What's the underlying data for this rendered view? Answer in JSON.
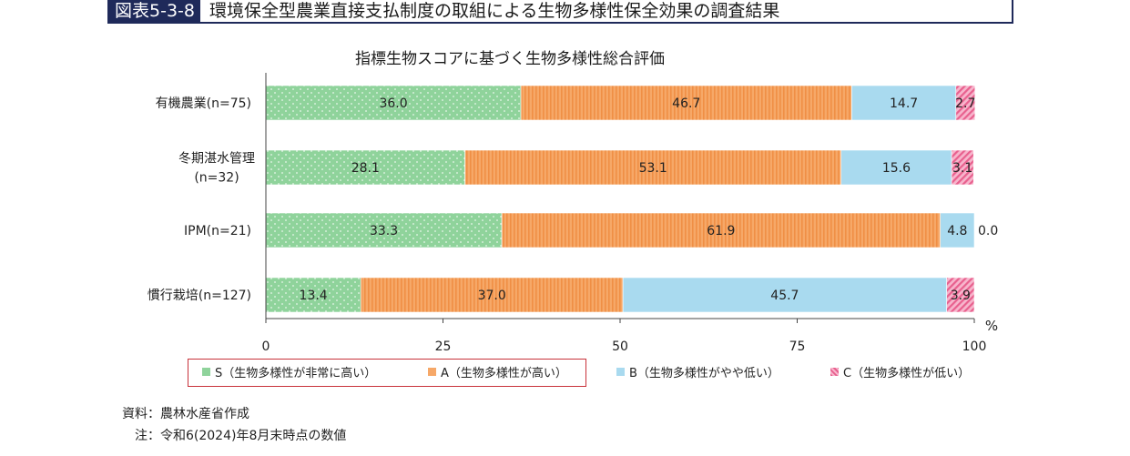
{
  "figure": {
    "number": "図表5-3-8",
    "title": "環境保全型農業直接支払制度の取組による生物多様性保全効果の調査結果"
  },
  "chart_data": {
    "type": "bar",
    "orientation": "horizontal",
    "stacked": true,
    "title": "指標生物スコアに基づく生物多様性総合評価",
    "unit": "%",
    "categories": [
      [
        "有機農業(n=75)"
      ],
      [
        "冬期湛水管理",
        "(n=32)"
      ],
      [
        "IPM(n=21)"
      ],
      [
        "慣行栽培(n=127)"
      ]
    ],
    "xlim": [
      0,
      100
    ],
    "xticks": [
      "0",
      "25",
      "50",
      "75",
      "100"
    ],
    "series": [
      {
        "name": "S（生物多様性が非常に高い）",
        "color": "#8fd39b",
        "values": [
          36.0,
          28.1,
          33.3,
          13.4
        ],
        "labels": [
          "36.0",
          "28.1",
          "33.3",
          "13.4"
        ]
      },
      {
        "name": "A（生物多様性が高い）",
        "color": "#f6a868",
        "values": [
          46.7,
          53.1,
          61.9,
          37.0
        ],
        "labels": [
          "46.7",
          "53.1",
          "61.9",
          "37.0"
        ]
      },
      {
        "name": "B（生物多様性がやや低い）",
        "color": "#a9daef",
        "values": [
          14.7,
          15.6,
          4.8,
          45.7
        ],
        "labels": [
          "14.7",
          "15.6",
          "4.8",
          "45.7"
        ]
      },
      {
        "name": "C（生物多様性が低い）",
        "color": "#f07fa6",
        "values": [
          2.7,
          3.1,
          0.0,
          3.9
        ],
        "labels": [
          "2.7",
          "3.1",
          "0.0",
          "3.9"
        ]
      }
    ],
    "legend_position": "bottom"
  },
  "notes": {
    "source": "資料：農林水産省作成",
    "note": "注：令和6(2024)年8月末時点の数値"
  }
}
